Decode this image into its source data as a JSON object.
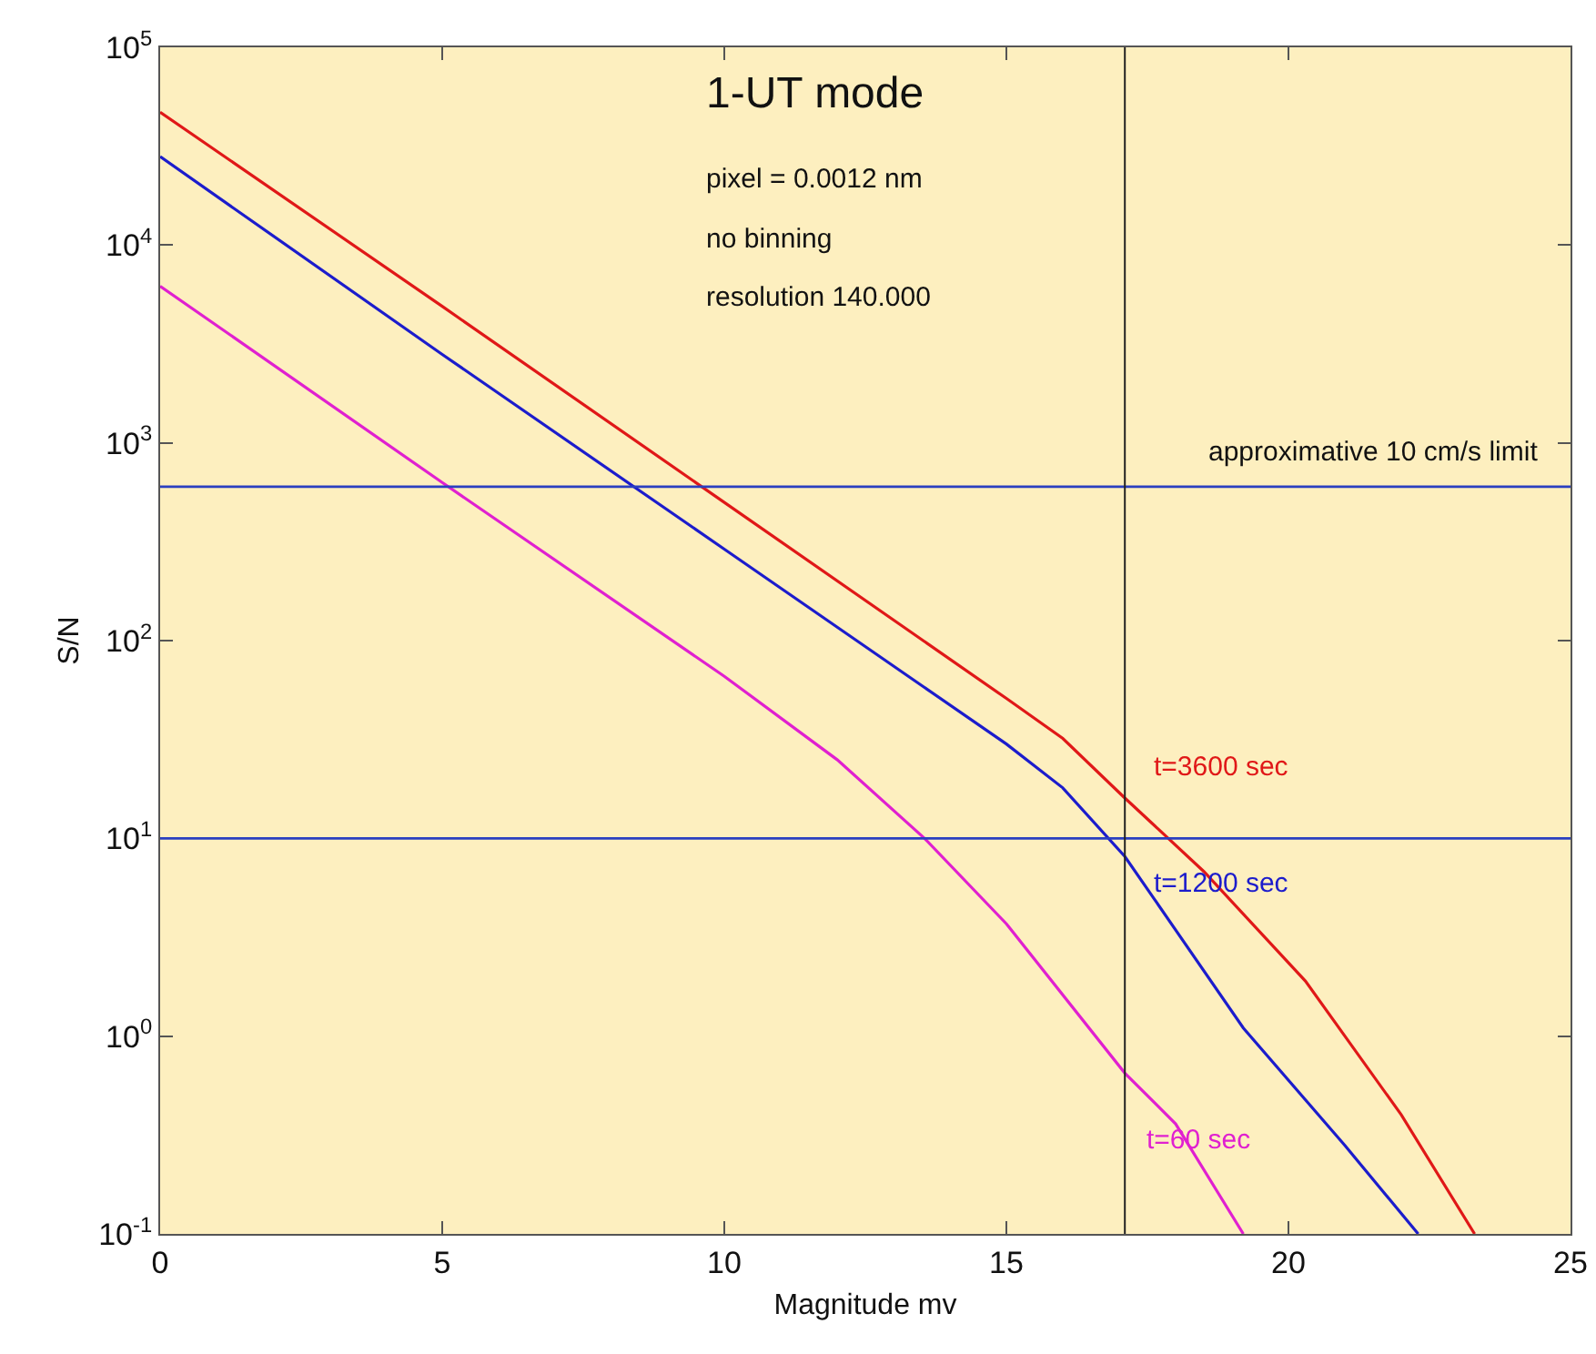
{
  "chart_data": {
    "type": "line",
    "title": "1-UT mode",
    "xlabel": "Magnitude mv",
    "ylabel": "S/N",
    "annotations": [
      "pixel = 0.0012 nm",
      "no binning",
      "resolution 140.000"
    ],
    "series": [
      {
        "name": "t=3600 sec",
        "color": "#e01818",
        "x": [
          0,
          5,
          10,
          15,
          16,
          17.1,
          18.5,
          20.3,
          22,
          23.3
        ],
        "values": [
          47000,
          4900,
          500,
          51,
          32,
          16,
          6.8,
          1.9,
          0.4,
          0.1
        ]
      },
      {
        "name": "t=1200 sec",
        "color": "#1c1ccc",
        "x": [
          0,
          5,
          10,
          15,
          16,
          17.1,
          19.2,
          21,
          22.3
        ],
        "values": [
          28000,
          2800,
          290,
          30,
          18,
          8.1,
          1.1,
          0.28,
          0.1
        ]
      },
      {
        "name": "t=60 sec",
        "color": "#e020d0",
        "x": [
          0,
          5,
          10,
          12,
          13.55,
          15,
          17.1,
          18,
          19.2
        ],
        "values": [
          6200,
          630,
          66,
          25,
          10,
          3.7,
          0.65,
          0.36,
          0.1
        ]
      }
    ],
    "ref_lines": [
      {
        "axis": "y",
        "value": 600,
        "label": "approximative 10 cm/s limit",
        "color": "#2a3fc0"
      },
      {
        "axis": "y",
        "value": 10,
        "color": "#2a3fc0"
      },
      {
        "axis": "x",
        "value": 17.1,
        "color": "#222222"
      }
    ],
    "log": "y",
    "xlim": [
      0,
      25
    ],
    "xticks": [
      0,
      5,
      10,
      15,
      20,
      25
    ],
    "ylim": [
      0.1,
      100000
    ],
    "yticks": [
      {
        "value": 0.1,
        "label": "10$^{-1}$"
      },
      {
        "value": 1,
        "label": "10$^{0}$"
      },
      {
        "value": 10,
        "label": "10$^{1}$"
      },
      {
        "value": 100,
        "label": "10$^{2}$"
      },
      {
        "value": 1000,
        "label": "10$^{3}$"
      },
      {
        "value": 10000,
        "label": "10$^{4}$"
      },
      {
        "value": 100000,
        "label": "10$^{5}$"
      }
    ],
    "grid": false,
    "legend": false,
    "marker": "none",
    "line_style": "solid"
  }
}
